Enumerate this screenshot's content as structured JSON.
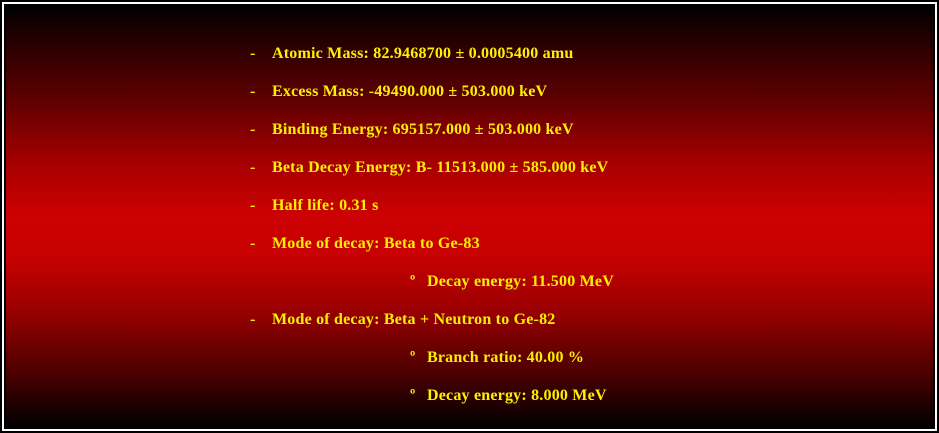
{
  "panel": {
    "description": "isotope-decay-data-panel",
    "colors": {
      "text_yellow": "#FFF000",
      "gradient_top": "#000000",
      "gradient_middle_red": "#CD0101",
      "gradient_bottom": "#000000",
      "frame_white": "#FFFFFF",
      "frame_black": "#000000"
    },
    "lines": [
      {
        "level": 1,
        "bullet": "-",
        "text": "Atomic Mass: 82.9468700 ± 0.0005400 amu"
      },
      {
        "level": 1,
        "bullet": "-",
        "text": "Excess Mass: -49490.000 ± 503.000 keV"
      },
      {
        "level": 1,
        "bullet": "-",
        "text": "Binding Energy: 695157.000 ± 503.000 keV"
      },
      {
        "level": 1,
        "bullet": "-",
        "text": "Beta Decay Energy: B- 11513.000 ± 585.000 keV"
      },
      {
        "level": 1,
        "bullet": "-",
        "text": "Half life: 0.31 s"
      },
      {
        "level": 1,
        "bullet": "-",
        "text": "Mode of decay: Beta to Ge-83"
      },
      {
        "level": 2,
        "bullet": "º",
        "text": "Decay energy: 11.500 MeV"
      },
      {
        "level": 1,
        "bullet": "-",
        "text": "Mode of decay: Beta + Neutron to Ge-82"
      },
      {
        "level": 2,
        "bullet": "º",
        "text": "Branch ratio: 40.00 %"
      },
      {
        "level": 2,
        "bullet": "º",
        "text": "Decay energy: 8.000 MeV"
      }
    ]
  }
}
